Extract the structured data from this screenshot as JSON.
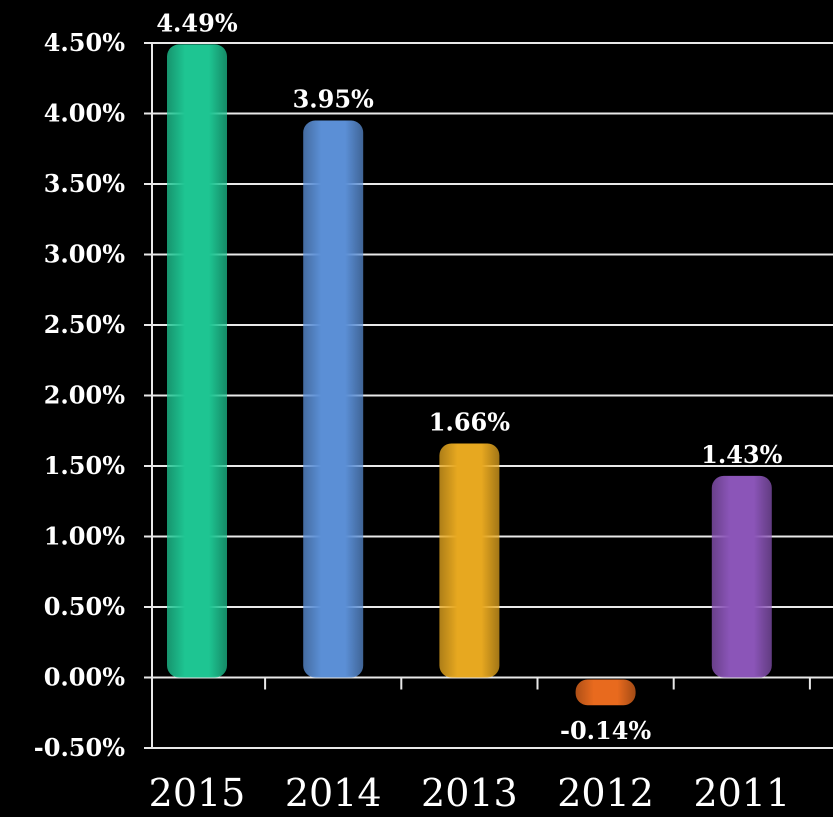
{
  "chart_data": {
    "type": "bar",
    "categories": [
      "2015",
      "2014",
      "2013",
      "2012",
      "2011"
    ],
    "values": [
      4.49,
      3.95,
      1.66,
      -0.14,
      1.43
    ],
    "data_labels": [
      "4.49%",
      "3.95%",
      "1.66%",
      "-0.14%",
      "1.43%"
    ],
    "colors": [
      "#1ec592",
      "#5b8fd6",
      "#e7a820",
      "#e86a1e",
      "#8b55b8"
    ],
    "ylim": [
      -0.5,
      4.5
    ],
    "yticks": [
      {
        "value": 4.5,
        "label": "4.50%"
      },
      {
        "value": 4.0,
        "label": "4.00%"
      },
      {
        "value": 3.5,
        "label": "3.50%"
      },
      {
        "value": 3.0,
        "label": "3.00%"
      },
      {
        "value": 2.5,
        "label": "2.50%"
      },
      {
        "value": 2.0,
        "label": "2.00%"
      },
      {
        "value": 1.5,
        "label": "1.50%"
      },
      {
        "value": 1.0,
        "label": "1.00%"
      },
      {
        "value": 0.5,
        "label": "0.50%"
      },
      {
        "value": 0.0,
        "label": "0.00%"
      },
      {
        "value": -0.5,
        "label": "-0.50%"
      }
    ],
    "grid": true,
    "title": "",
    "xlabel": "",
    "ylabel": ""
  }
}
